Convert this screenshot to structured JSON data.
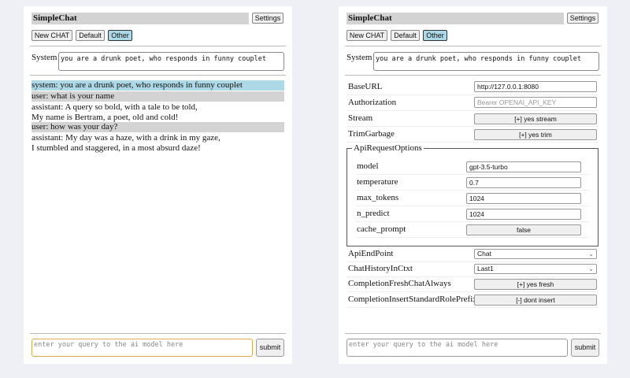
{
  "app_title": "SimpleChat",
  "settings_label": "Settings",
  "buttons": {
    "new_chat": "New CHAT",
    "default": "Default",
    "other": "Other"
  },
  "system_label": "System",
  "system_prompt": "you are a drunk poet, who responds in funny couplet",
  "messages": [
    {
      "role": "system",
      "lines": [
        "system: you are a drunk poet, who responds in funny couplet"
      ]
    },
    {
      "role": "user",
      "lines": [
        "user: what is your name"
      ]
    },
    {
      "role": "assistant",
      "lines": [
        "assistant: A query so bold, with a tale to be told,",
        "My name is Bertram, a poet, old and cold!"
      ]
    },
    {
      "role": "user",
      "lines": [
        "user: how was your day?"
      ]
    },
    {
      "role": "assistant",
      "lines": [
        "assistant: My day was a haze, with a drink in my gaze,",
        "I stumbled and staggered, in a most absurd daze!"
      ]
    }
  ],
  "query_placeholder": "enter your query to the ai model here",
  "submit_label": "submit",
  "settings": {
    "base_url": {
      "label": "BaseURL",
      "value": "http://127.0.0.1:8080"
    },
    "authorization": {
      "label": "Authorization",
      "placeholder": "Bearer OPENAI_API_KEY"
    },
    "stream": {
      "label": "Stream",
      "value": "[+] yes stream"
    },
    "trim": {
      "label": "TrimGarbage",
      "value": "[+] yes trim"
    },
    "api_options": {
      "legend": "ApiRequestOptions",
      "model": {
        "label": "model",
        "value": "gpt-3.5-turbo"
      },
      "temperature": {
        "label": "temperature",
        "value": "0.7"
      },
      "max_tokens": {
        "label": "max_tokens",
        "value": "1024"
      },
      "n_predict": {
        "label": "n_predict",
        "value": "1024"
      },
      "cache_prompt": {
        "label": "cache_prompt",
        "value": "false"
      }
    },
    "api_endpoint": {
      "label": "ApiEndPoint",
      "value": "Chat"
    },
    "chat_history": {
      "label": "ChatHistoryInCtxt",
      "value": "Last1"
    },
    "fresh": {
      "label": "CompletionFreshChatAlways",
      "value": "[+] yes fresh"
    },
    "prefix": {
      "label": "CompletionInsertStandardRolePrefix",
      "value": "[-] dont insert"
    }
  }
}
